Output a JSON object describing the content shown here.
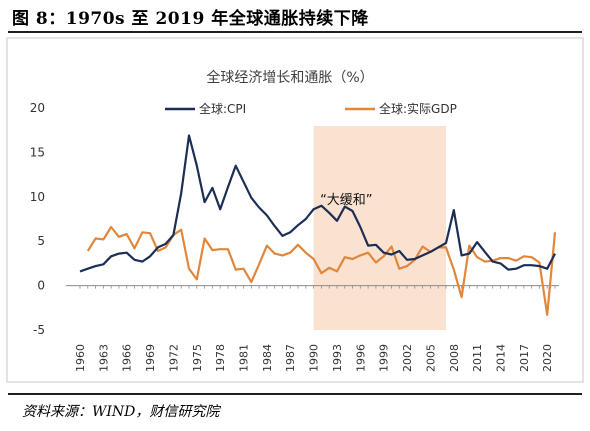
{
  "figure": {
    "title": "图 8：1970s 至 2019 年全球通胀持续下降",
    "source": "资料来源：WIND，财信研究院"
  },
  "chart_data": {
    "type": "line",
    "title": "全球经济增长和通胀（%）",
    "x_start": 1960,
    "x_end": 2021,
    "x_tick_labels": [
      "1960",
      "1963",
      "1966",
      "1969",
      "1972",
      "1975",
      "1978",
      "1981",
      "1984",
      "1987",
      "1990",
      "1993",
      "1996",
      "1999",
      "2002",
      "2005",
      "2008",
      "2011",
      "2014",
      "2017",
      "2020"
    ],
    "ylim": [
      -5,
      20
    ],
    "y_ticks": [
      -5,
      0,
      5,
      10,
      15,
      20
    ],
    "legend_position": "top",
    "grid": false,
    "shaded_region": {
      "from": 1990,
      "to": 2007,
      "color": "#fbe1d0",
      "label": "“大缓和”"
    },
    "series": [
      {
        "name": "全球:CPI",
        "color": "#1c2e55",
        "values": [
          1.6,
          1.9,
          2.2,
          2.4,
          3.3,
          3.6,
          3.7,
          2.9,
          2.7,
          3.3,
          4.3,
          4.7,
          5.7,
          10.4,
          16.9,
          13.5,
          9.4,
          11.0,
          8.6,
          11.1,
          13.5,
          11.7,
          9.9,
          8.8,
          7.9,
          6.7,
          5.6,
          6.0,
          6.8,
          7.5,
          8.6,
          9.0,
          8.2,
          7.3,
          8.9,
          8.4,
          6.6,
          4.5,
          4.6,
          3.7,
          3.5,
          3.9,
          2.9,
          3.0,
          3.4,
          3.8,
          4.3,
          4.8,
          8.5,
          3.4,
          3.6,
          4.9,
          3.8,
          2.7,
          2.5,
          1.8,
          1.9,
          2.3,
          2.3,
          2.2,
          1.9,
          3.6
        ]
      },
      {
        "name": "全球:实际GDP",
        "color": "#e0873b",
        "values": [
          null,
          3.9,
          5.3,
          5.2,
          6.6,
          5.5,
          5.8,
          4.2,
          6.0,
          5.9,
          3.9,
          4.3,
          5.7,
          6.3,
          1.9,
          0.7,
          5.3,
          4.0,
          4.1,
          4.1,
          1.8,
          1.9,
          0.4,
          2.4,
          4.5,
          3.6,
          3.4,
          3.7,
          4.6,
          3.7,
          3.0,
          1.4,
          2.0,
          1.6,
          3.2,
          3.0,
          3.4,
          3.7,
          2.6,
          3.3,
          4.4,
          1.9,
          2.2,
          2.9,
          4.4,
          3.8,
          4.3,
          4.3,
          1.8,
          -1.3,
          4.5,
          3.2,
          2.7,
          2.8,
          3.1,
          3.1,
          2.8,
          3.3,
          3.2,
          2.6,
          -3.3,
          6.0
        ]
      }
    ]
  }
}
